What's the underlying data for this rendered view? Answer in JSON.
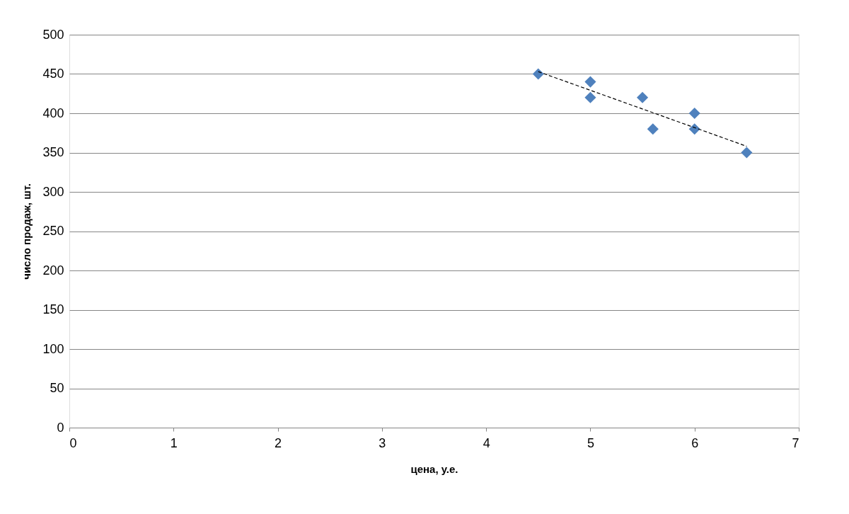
{
  "chart_data": {
    "type": "scatter",
    "xlabel": "цена, у.е.",
    "ylabel": "число продаж,  шт.",
    "series": [
      {
        "color": "#4f81bd",
        "marker": "diamond",
        "x": [
          4.5,
          5,
          5,
          5.5,
          5.6,
          6,
          6,
          6.5
        ],
        "values": [
          450,
          440,
          420,
          420,
          380,
          400,
          380,
          350
        ]
      },
      {
        "type": "line",
        "color": "#000000",
        "line_style": "dashed",
        "marker": "none",
        "x": [
          4.5,
          6.5
        ],
        "values": [
          453,
          358
        ]
      }
    ],
    "xlim": [
      0,
      7
    ],
    "xticks": [
      0,
      1,
      2,
      3,
      4,
      5,
      6,
      7
    ],
    "ylim": [
      0,
      500
    ],
    "yticks": [
      0,
      50,
      100,
      150,
      200,
      250,
      300,
      350,
      400,
      450,
      500
    ],
    "grid": "y",
    "legend": false
  }
}
